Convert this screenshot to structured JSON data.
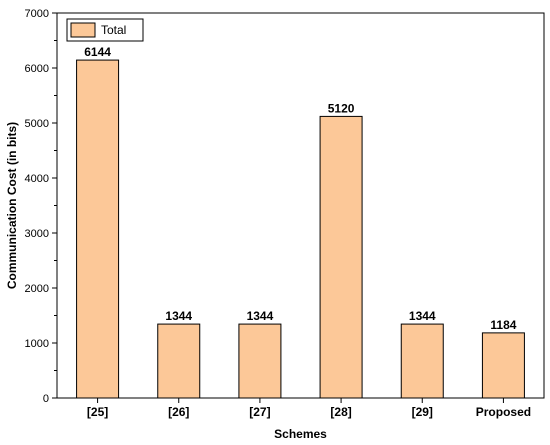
{
  "chart_data": {
    "type": "bar",
    "categories": [
      "[25]",
      "[26]",
      "[27]",
      "[28]",
      "[29]",
      "Proposed"
    ],
    "series": [
      {
        "name": "Total",
        "values": [
          6144,
          1344,
          1344,
          5120,
          1344,
          1184
        ]
      }
    ],
    "data_labels": [
      "6144",
      "1344",
      "1344",
      "5120",
      "1344",
      "1184"
    ],
    "xlabel": "Schemes",
    "ylabel": "Communication Cost (in bits)",
    "ylim": [
      0,
      7000
    ],
    "yticks": [
      0,
      1000,
      2000,
      3000,
      4000,
      5000,
      6000,
      7000
    ],
    "ytick_labels": [
      "0",
      "1000",
      "2000",
      "3000",
      "4000",
      "5000",
      "6000",
      "7000"
    ],
    "legend": {
      "position": "top-left",
      "entries": [
        "Total"
      ]
    },
    "grid": false,
    "colors": {
      "bar_fill": "#fcc898",
      "bar_stroke": "#000000"
    }
  }
}
